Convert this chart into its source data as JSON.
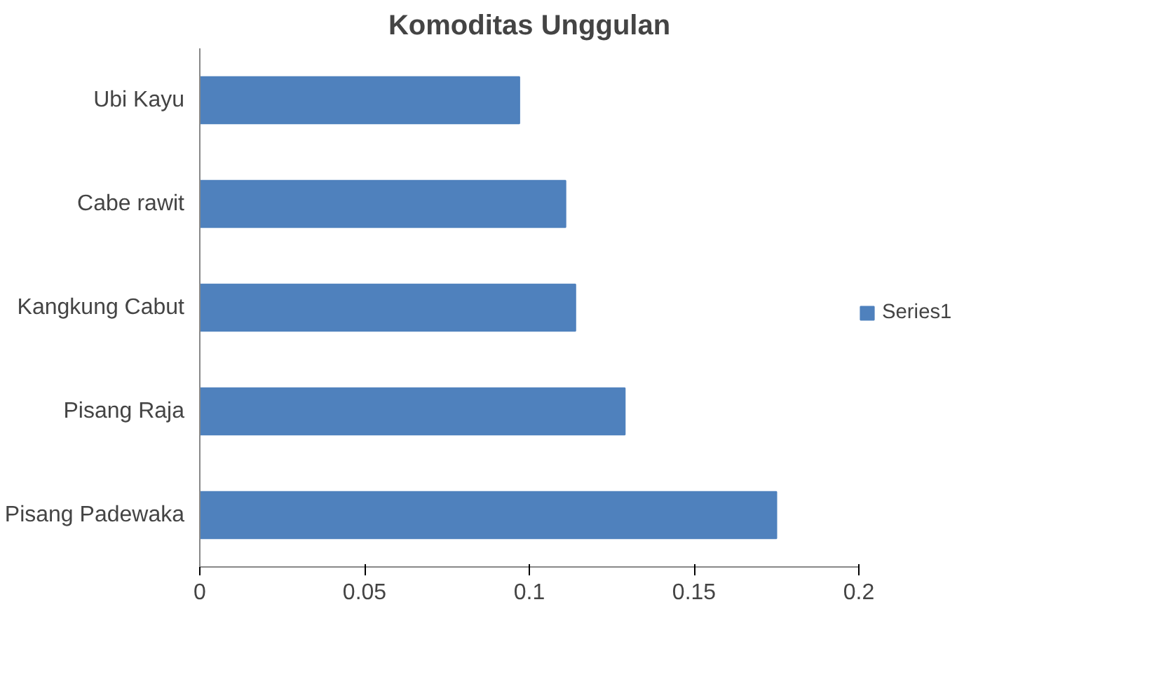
{
  "chart_data": {
    "type": "bar",
    "orientation": "horizontal",
    "title": "Komoditas Unggulan",
    "categories": [
      "Ubi Kayu",
      "Cabe rawit",
      "Kangkung Cabut",
      "Pisang Raja",
      "Pisang Padewaka"
    ],
    "series": [
      {
        "name": "Series1",
        "color": "#4f81bd",
        "values": [
          0.097,
          0.111,
          0.114,
          0.129,
          0.175
        ]
      }
    ],
    "xlim": [
      0,
      0.2
    ],
    "xticks": [
      0,
      0.05,
      0.1,
      0.15,
      0.2
    ],
    "grid": false,
    "legend": "right"
  }
}
